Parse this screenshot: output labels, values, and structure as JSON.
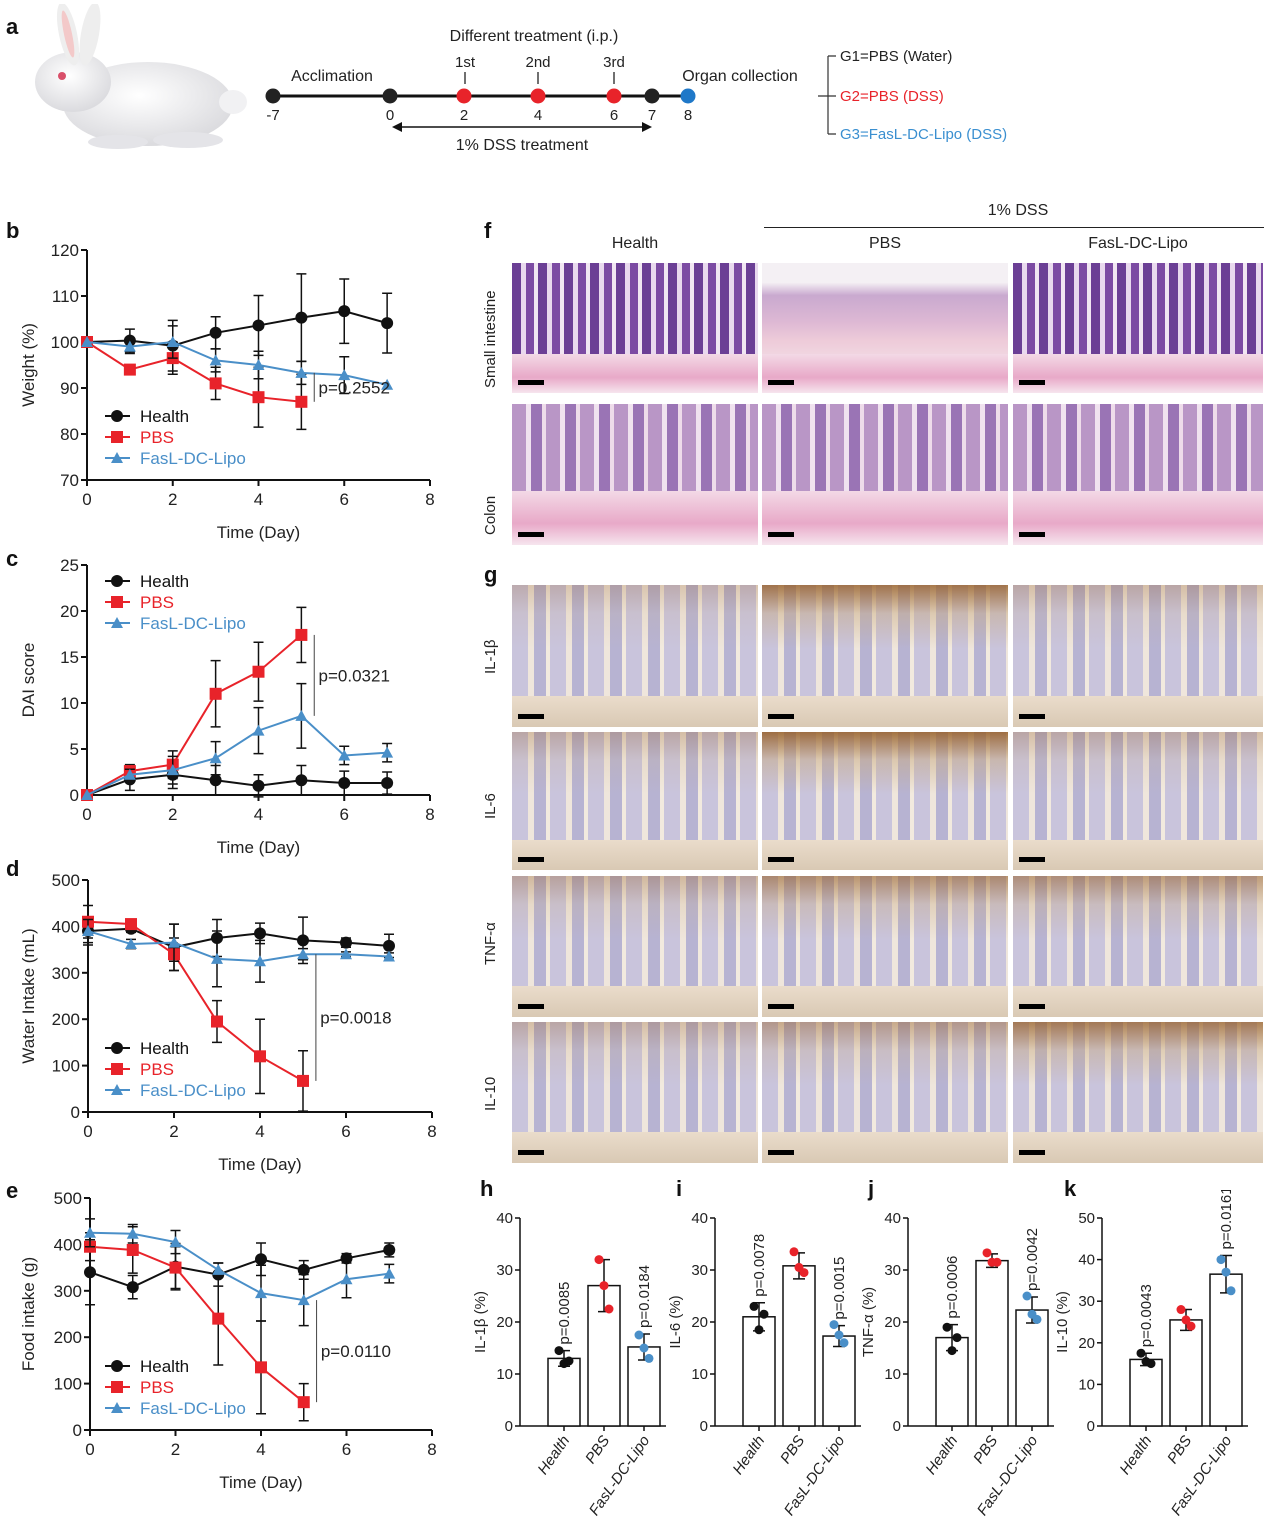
{
  "panels": {
    "a": "a",
    "b": "b",
    "c": "c",
    "d": "d",
    "e": "e",
    "f": "f",
    "g": "g",
    "h": "h",
    "i": "i",
    "j": "j",
    "k": "k"
  },
  "timeline": {
    "treatment_label": "Different treatment (i.p.)",
    "acclimation_label": "Acclimation",
    "organ_label": "Organ collection",
    "dss_label": "1% DSS treatment",
    "doses": [
      "1st",
      "2nd",
      "3rd"
    ],
    "points": [
      {
        "day": "-7",
        "color": "#222222"
      },
      {
        "day": "0",
        "color": "#222222"
      },
      {
        "day": "2",
        "color": "#e8232a"
      },
      {
        "day": "4",
        "color": "#e8232a"
      },
      {
        "day": "6",
        "color": "#e8232a"
      },
      {
        "day": "7",
        "color": "#222222"
      },
      {
        "day": "8",
        "color": "#1f78c8"
      }
    ],
    "groups": [
      {
        "label": "G1=PBS (Water)",
        "color": "#222222"
      },
      {
        "label": "G2=PBS (DSS)",
        "color": "#e8232a"
      },
      {
        "label": "G3=FasL-DC-Lipo (DSS)",
        "color": "#3a8fd0"
      }
    ]
  },
  "histology": {
    "dss_header": "1% DSS",
    "columns": [
      "Health",
      "PBS",
      "FasL-DC-Lipo"
    ],
    "he_rows": [
      "Small intestine",
      "Colon"
    ],
    "ihc_rows": [
      "IL-1β",
      "IL-6",
      "TNF-α",
      "IL-10"
    ]
  },
  "colors": {
    "Health": "#111111",
    "PBS": "#e8232a",
    "FasL-DC-Lipo": "#4a8fc8"
  },
  "chart_data": [
    {
      "id": "b",
      "type": "line",
      "xlabel": "Time (Day)",
      "ylabel": "Weight (%)",
      "xlim": [
        0,
        8
      ],
      "ylim": [
        70,
        120
      ],
      "xticks": [
        0,
        2,
        4,
        6,
        8
      ],
      "yticks": [
        70,
        80,
        90,
        100,
        110,
        120
      ],
      "annotation": "p=0.2552",
      "legend": "bottom-left",
      "series": [
        {
          "name": "Health",
          "marker": "circle",
          "x": [
            0,
            1,
            2,
            3,
            4,
            5,
            6,
            7
          ],
          "y": [
            100,
            100.3,
            99.2,
            102,
            103.6,
            105.3,
            106.7,
            104.1
          ],
          "err": [
            0,
            2.5,
            5.5,
            3.5,
            6.5,
            9.5,
            7,
            6.5
          ]
        },
        {
          "name": "PBS",
          "marker": "square",
          "x": [
            0,
            1,
            2,
            3,
            4,
            5
          ],
          "y": [
            100,
            94,
            96.5,
            91,
            88,
            87
          ],
          "err": [
            0,
            0,
            3.5,
            3.5,
            6.5,
            6
          ]
        },
        {
          "name": "FasL-DC-Lipo",
          "marker": "triangle",
          "x": [
            0,
            1,
            2,
            3,
            4,
            5,
            6,
            7
          ],
          "y": [
            100,
            99,
            100,
            96,
            95,
            93.3,
            92.8,
            90.7
          ],
          "err": [
            0,
            1.5,
            3.5,
            2.5,
            3,
            2.5,
            4,
            0
          ]
        }
      ]
    },
    {
      "id": "c",
      "type": "line",
      "xlabel": "Time (Day)",
      "ylabel": "DAI score",
      "xlim": [
        0,
        8
      ],
      "ylim": [
        0,
        25
      ],
      "xticks": [
        0,
        2,
        4,
        6,
        8
      ],
      "yticks": [
        0,
        5,
        10,
        15,
        20,
        25
      ],
      "annotation": "p=0.0321",
      "legend": "top-left",
      "series": [
        {
          "name": "Health",
          "marker": "circle",
          "x": [
            0,
            1,
            2,
            3,
            4,
            5,
            6,
            7
          ],
          "y": [
            0,
            1.7,
            2.2,
            1.6,
            1,
            1.6,
            1.3,
            1.3
          ],
          "err": [
            0,
            1.2,
            1.5,
            1.6,
            1.2,
            1.6,
            1.3,
            1.2
          ]
        },
        {
          "name": "PBS",
          "marker": "square",
          "x": [
            0,
            1,
            2,
            3,
            4,
            5
          ],
          "y": [
            0,
            2.6,
            3.3,
            11,
            13.4,
            17.4
          ],
          "err": [
            0,
            0.7,
            1.5,
            3.6,
            3.2,
            3
          ]
        },
        {
          "name": "FasL-DC-Lipo",
          "marker": "triangle",
          "x": [
            0,
            1,
            2,
            3,
            4,
            5,
            6,
            7
          ],
          "y": [
            0,
            2.2,
            2.7,
            4,
            7,
            8.6,
            4.3,
            4.6
          ],
          "err": [
            0,
            0.6,
            1.5,
            1.8,
            2.5,
            3.5,
            1,
            1
          ]
        }
      ]
    },
    {
      "id": "d",
      "type": "line",
      "xlabel": "Time (Day)",
      "ylabel": "Water Intake  (mL)",
      "xlim": [
        0,
        8
      ],
      "ylim": [
        0,
        500
      ],
      "xticks": [
        0,
        2,
        4,
        6,
        8
      ],
      "yticks": [
        0,
        100,
        200,
        300,
        400,
        500
      ],
      "annotation": "p=0.0018",
      "legend": "bottom-left",
      "series": [
        {
          "name": "Health",
          "marker": "circle",
          "x": [
            0,
            1,
            2,
            3,
            4,
            5,
            6,
            7
          ],
          "y": [
            390,
            395,
            355,
            375,
            385,
            370,
            365,
            358
          ],
          "err": [
            30,
            8,
            50,
            40,
            22,
            50,
            10,
            25
          ]
        },
        {
          "name": "PBS",
          "marker": "square",
          "x": [
            0,
            1,
            2,
            3,
            4,
            5
          ],
          "y": [
            410,
            405,
            340,
            195,
            120,
            67
          ],
          "err": [
            35,
            5,
            35,
            45,
            80,
            65
          ]
        },
        {
          "name": "FasL-DC-Lipo",
          "marker": "triangle",
          "x": [
            0,
            1,
            2,
            3,
            4,
            5,
            6,
            7
          ],
          "y": [
            390,
            362,
            365,
            330,
            325,
            340,
            340,
            335
          ],
          "err": [
            25,
            10,
            40,
            60,
            45,
            12,
            5,
            8
          ]
        }
      ]
    },
    {
      "id": "e",
      "type": "line",
      "xlabel": "Time (Day)",
      "ylabel": "Food intake (g)",
      "xlim": [
        0,
        8
      ],
      "ylim": [
        0,
        500
      ],
      "xticks": [
        0,
        2,
        4,
        6,
        8
      ],
      "yticks": [
        0,
        100,
        200,
        300,
        400,
        500
      ],
      "annotation": "p=0.0110",
      "legend": "bottom-left",
      "series": [
        {
          "name": "Health",
          "marker": "circle",
          "x": [
            0,
            1,
            2,
            3,
            4,
            5,
            6,
            7
          ],
          "y": [
            340,
            308,
            352,
            335,
            368,
            345,
            370,
            388
          ],
          "err": [
            70,
            25,
            50,
            25,
            35,
            20,
            10,
            15
          ]
        },
        {
          "name": "PBS",
          "marker": "square",
          "x": [
            0,
            1,
            2,
            3,
            4,
            5
          ],
          "y": [
            395,
            388,
            350,
            240,
            135,
            60
          ],
          "err": [
            30,
            50,
            45,
            100,
            100,
            40
          ]
        },
        {
          "name": "FasL-DC-Lipo",
          "marker": "triangle",
          "x": [
            0,
            1,
            2,
            3,
            4,
            5,
            6,
            7
          ],
          "y": [
            425,
            423,
            405,
            345,
            295,
            280,
            325,
            337
          ],
          "err": [
            30,
            20,
            25,
            15,
            60,
            55,
            40,
            20
          ]
        }
      ]
    },
    {
      "id": "h",
      "type": "bar",
      "ylabel": "IL-1β (%)",
      "categories": [
        "Health",
        "PBS",
        "FasL-DC-Lipo"
      ],
      "values": [
        13,
        27,
        15.2
      ],
      "err": [
        1.5,
        5,
        2.5
      ],
      "points": [
        [
          14.5,
          12,
          12.5
        ],
        [
          32,
          27,
          22.5
        ],
        [
          17.5,
          15,
          13
        ]
      ],
      "pvalues": [
        "p=0.0085",
        "",
        "p=0.0184"
      ],
      "ylim": [
        0,
        40
      ],
      "yticks": [
        0,
        10,
        20,
        30,
        40
      ]
    },
    {
      "id": "i",
      "type": "bar",
      "ylabel": "IL-6 (%)",
      "categories": [
        "Health",
        "PBS",
        "FasL-DC-Lipo"
      ],
      "values": [
        21,
        30.8,
        17.3
      ],
      "err": [
        2.7,
        2.5,
        2
      ],
      "points": [
        [
          23,
          18.5,
          21.5
        ],
        [
          33.5,
          30.5,
          29.5
        ],
        [
          19.5,
          17.5,
          16
        ]
      ],
      "pvalues": [
        "p=0.0078",
        "",
        "p=0.0015"
      ],
      "ylim": [
        0,
        40
      ],
      "yticks": [
        0,
        10,
        20,
        30,
        40
      ]
    },
    {
      "id": "j",
      "type": "bar",
      "ylabel": "TNF-α (%)",
      "categories": [
        "Health",
        "PBS",
        "FasL-DC-Lipo"
      ],
      "values": [
        17,
        31.8,
        22.3
      ],
      "err": [
        2.5,
        1.3,
        2.5
      ],
      "points": [
        [
          19,
          14.5,
          17
        ],
        [
          33.3,
          31.5,
          31.5
        ],
        [
          25,
          21.5,
          20.5
        ]
      ],
      "pvalues": [
        "p=0.0006",
        "",
        "p=0.0042"
      ],
      "ylim": [
        0,
        40
      ],
      "yticks": [
        0,
        10,
        20,
        30,
        40
      ]
    },
    {
      "id": "k",
      "type": "bar",
      "ylabel": "IL-10  (%)",
      "categories": [
        "Health",
        "PBS",
        "FasL-DC-Lipo"
      ],
      "values": [
        16,
        25.5,
        36.5
      ],
      "err": [
        1.5,
        2.5,
        4.5
      ],
      "points": [
        [
          17.5,
          15.5,
          15
        ],
        [
          28,
          25.5,
          24
        ],
        [
          40,
          37,
          32.5
        ]
      ],
      "pvalues": [
        "p=0.0043",
        "",
        "p=0.0161"
      ],
      "ylim": [
        0,
        50
      ],
      "yticks": [
        0,
        10,
        20,
        30,
        40,
        50
      ]
    }
  ]
}
